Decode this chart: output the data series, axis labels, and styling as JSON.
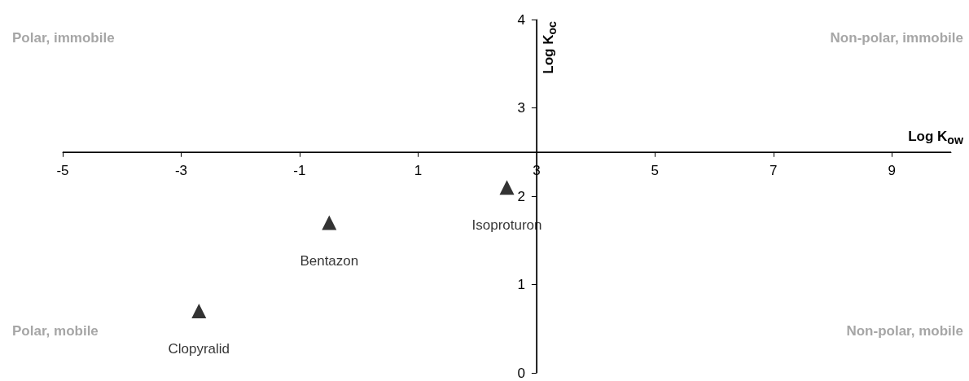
{
  "chart_data": {
    "type": "scatter",
    "xlabel": "Log K$_{ow}$",
    "ylabel": "Log K$_{oc}$",
    "x": [
      -2.7,
      -0.5,
      2.5
    ],
    "series": [
      {
        "color": "#000000",
        "values": [
          0.7,
          1.7,
          2.1
        ]
      }
    ],
    "marker": "triangle",
    "xlim": [
      -5,
      10
    ],
    "xticks": [
      -5,
      -3,
      -1,
      1,
      3,
      5,
      7,
      9
    ],
    "ylim": [
      0,
      4
    ],
    "yticks": [
      0,
      1,
      2,
      3,
      4
    ],
    "ref_lines": [
      {
        "axis": "x",
        "value": 3
      },
      {
        "axis": "y",
        "value": 2.5
      }
    ],
    "grid": false,
    "annotations": [
      "Polar, immobile",
      "Non-polar, immobile",
      "Polar, mobile",
      "Non-polar, mobile",
      {
        "text": "Clopyralid",
        "x": -2.7,
        "y": 0.7
      },
      {
        "text": "Bentazon",
        "x": -0.5,
        "y": 1.7
      },
      {
        "text": "Isoproturon",
        "x": 2.5,
        "y": 2.1
      }
    ]
  }
}
